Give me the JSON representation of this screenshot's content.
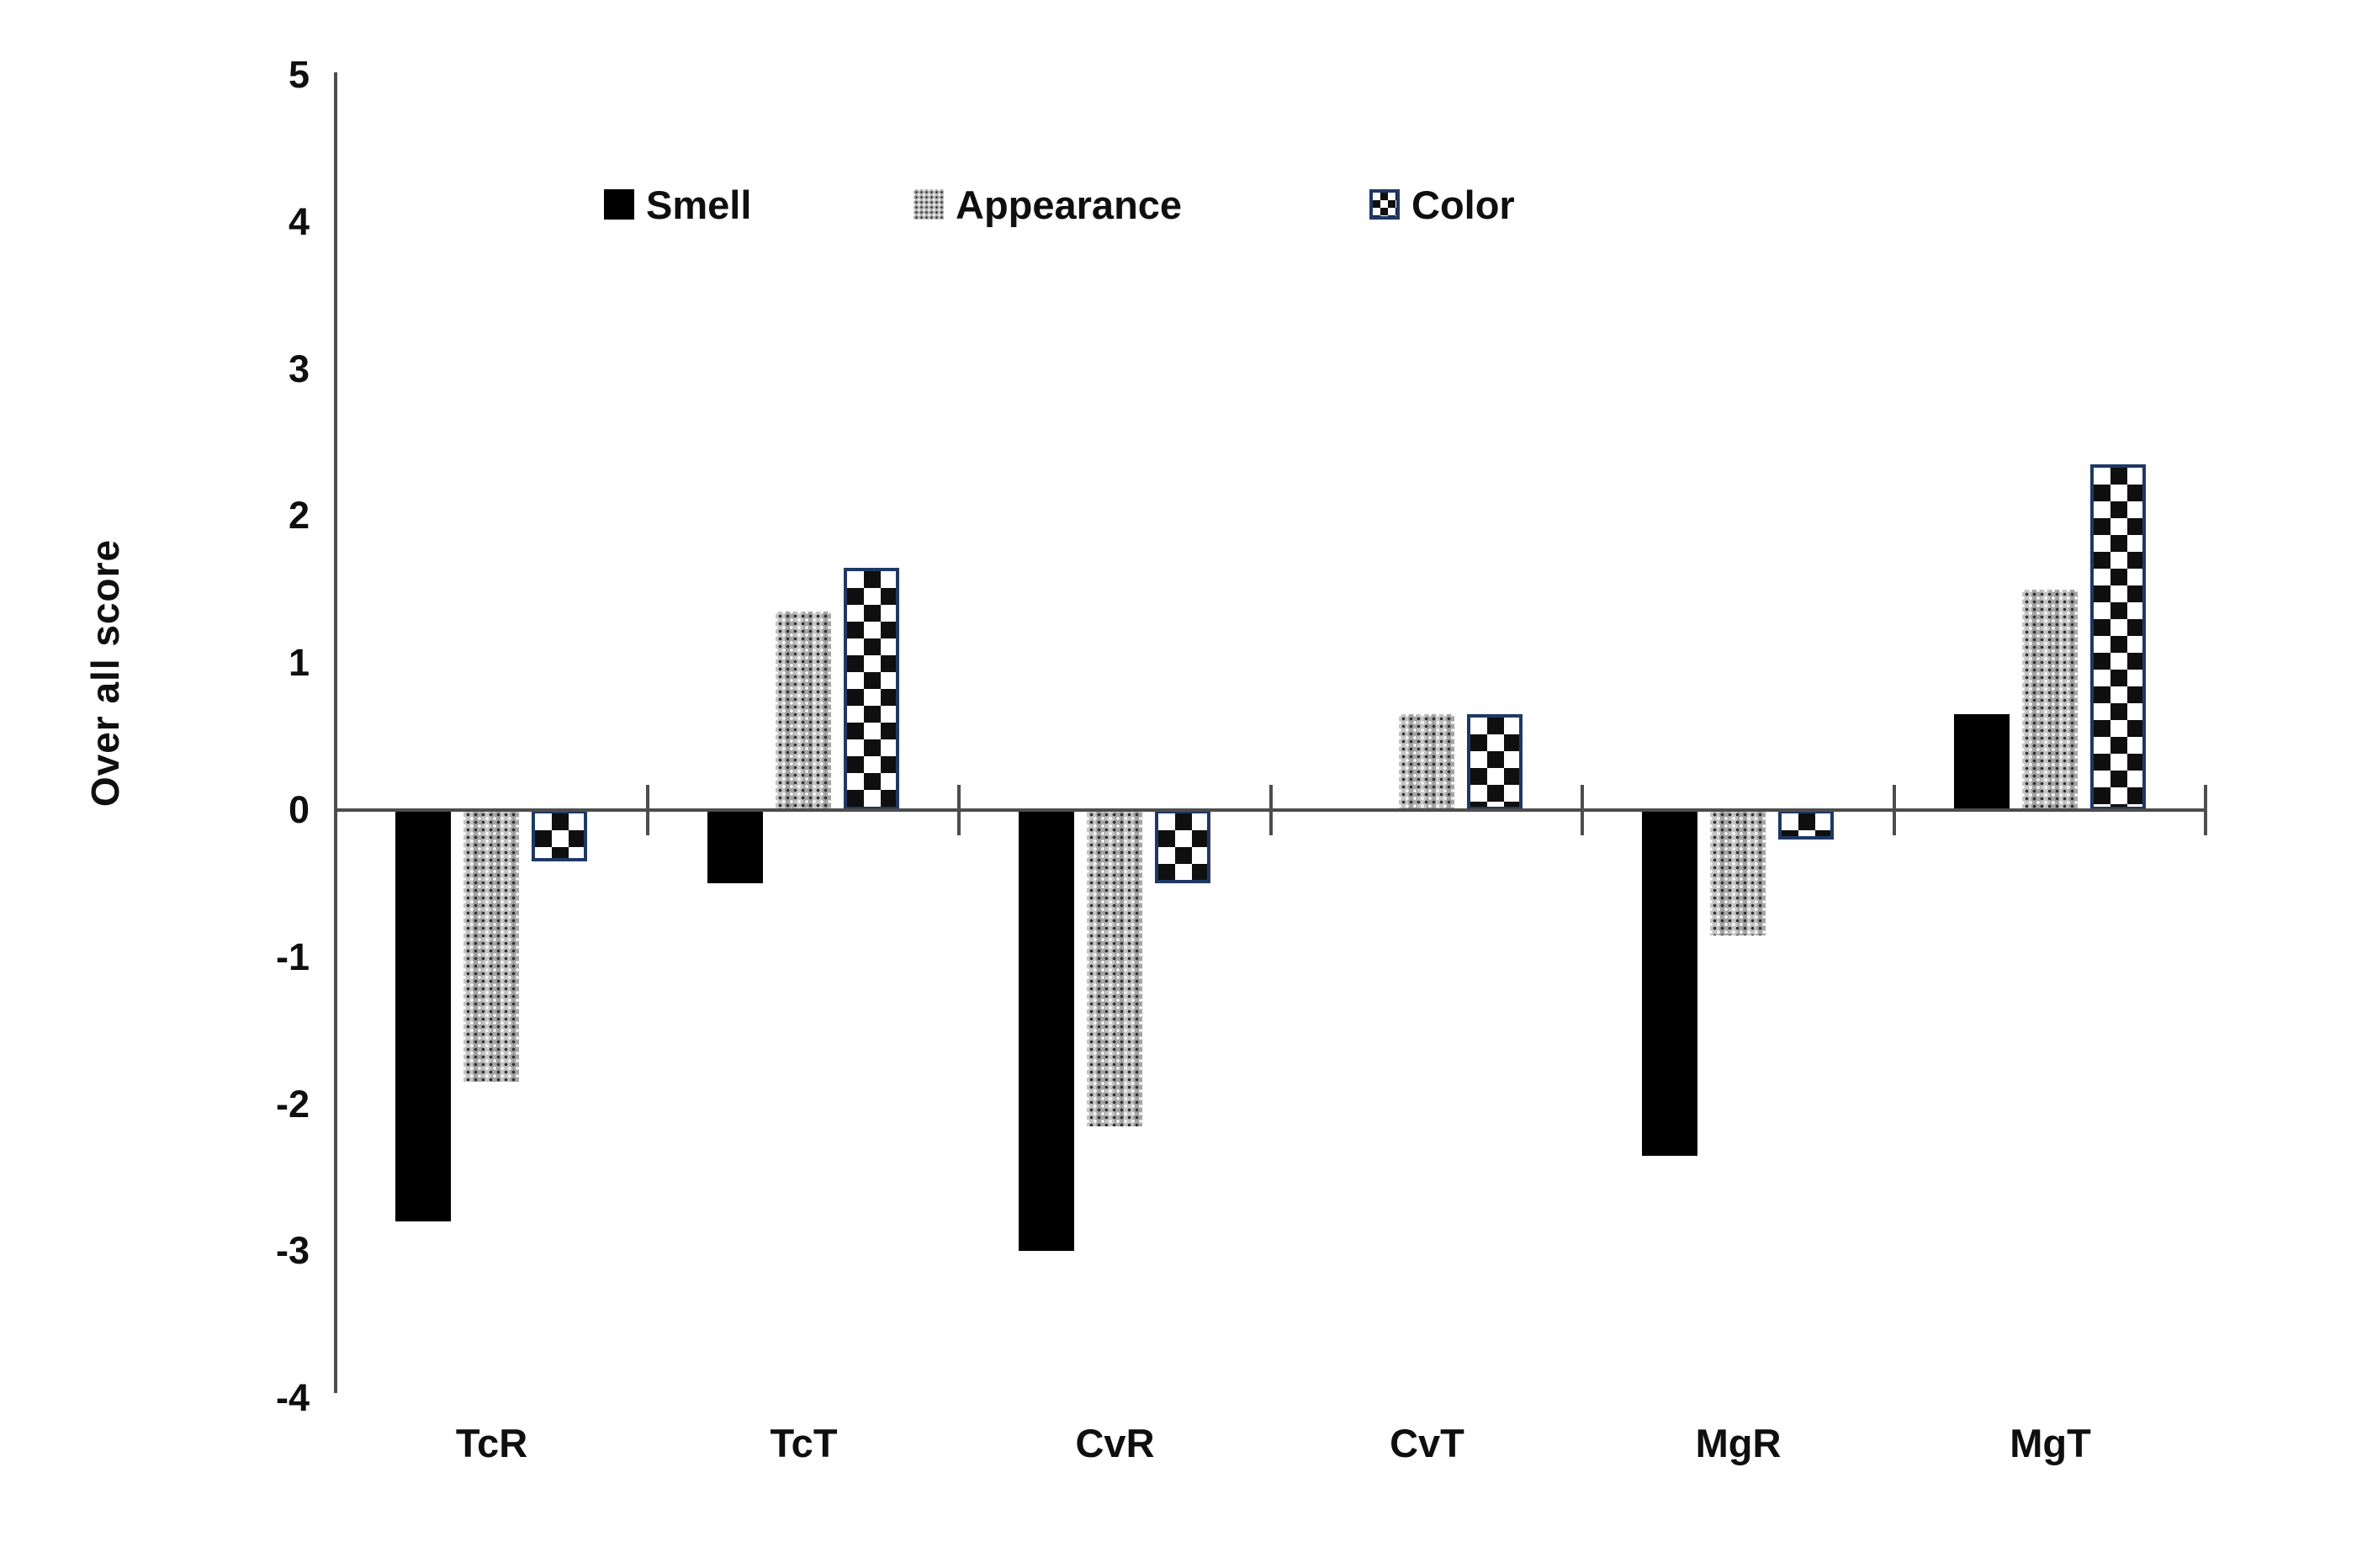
{
  "figure": {
    "background": "#ffffff"
  },
  "chart_data": {
    "type": "bar",
    "title": "",
    "xlabel": "",
    "ylabel": "Over all score",
    "categories": [
      "TcR",
      "TcT",
      "CvR",
      "CvT",
      "MgR",
      "MgT"
    ],
    "series": [
      {
        "name": "Smell",
        "pattern": "solid-black",
        "values": [
          -2.8,
          -0.5,
          -3.0,
          0,
          -2.35,
          0.65
        ]
      },
      {
        "name": "Appearance",
        "pattern": "gray-dotted",
        "values": [
          -1.85,
          1.35,
          -2.15,
          0.65,
          -0.85,
          1.5
        ]
      },
      {
        "name": "Color",
        "pattern": "checkerboard",
        "values": [
          -0.35,
          1.65,
          -0.5,
          0.65,
          -0.2,
          2.35
        ]
      }
    ],
    "ylim": [
      -4,
      5
    ],
    "yticks": [
      5,
      4,
      3,
      2,
      1,
      0,
      -1,
      -2,
      -3,
      -4
    ],
    "grid": false,
    "legend_position": "top",
    "colors": {
      "smell": "#000000",
      "appearance_base": "#b4b4b4",
      "checker_dark": "#0f0f0f",
      "checker_border": "#1f3864",
      "axis": "#4d4d4d",
      "text": "#0f0f0f"
    }
  }
}
